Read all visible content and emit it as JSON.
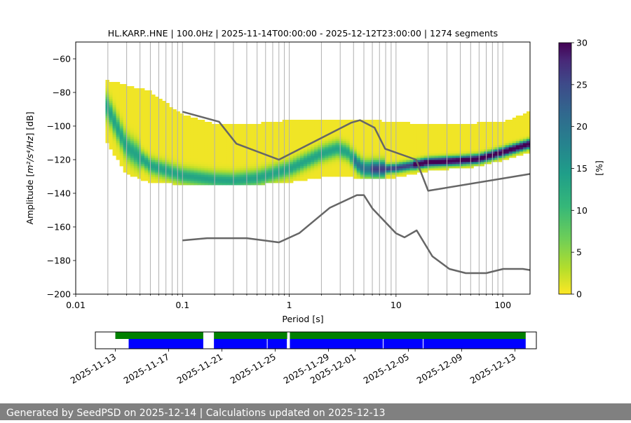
{
  "chart_data": {
    "type": "heatmap",
    "title": "HL.KARP..HNE | 100.0Hz | 2025-11-14T00:00:00 - 2025-12-12T23:00:00 | 1274 segments",
    "xlabel": "Period [s]",
    "ylabel_main": "Amplitude [",
    "ylabel_unit": "m²/s⁴/Hz",
    "ylabel_end": "] [dB]",
    "x_scale": "log",
    "xlim": [
      0.01,
      180
    ],
    "ylim": [
      -200,
      -50
    ],
    "x_ticks": [
      {
        "value": 0.01,
        "label": "0.01"
      },
      {
        "value": 0.1,
        "label": "0.1"
      },
      {
        "value": 1,
        "label": "1"
      },
      {
        "value": 10,
        "label": "10"
      },
      {
        "value": 100,
        "label": "100"
      }
    ],
    "y_ticks": [
      -60,
      -80,
      -100,
      -120,
      -140,
      -160,
      -180,
      -200
    ],
    "grid_periods": [
      0.02,
      0.03,
      0.04,
      0.05,
      0.06,
      0.07,
      0.08,
      0.09,
      0.1,
      0.2,
      0.3,
      0.4,
      0.5,
      0.6,
      0.7,
      0.8,
      0.9,
      1,
      2,
      3,
      4,
      5,
      6,
      7,
      8,
      9,
      10,
      20,
      30,
      40,
      50,
      60,
      70,
      80,
      90,
      100
    ],
    "colorbar": {
      "label": "[%]",
      "min": 0,
      "max": 30,
      "ticks": [
        0,
        5,
        10,
        15,
        20,
        25,
        30
      ],
      "colormap": "viridis_r"
    },
    "high_noise_model": {
      "period": [
        0.1,
        0.22,
        0.32,
        0.8,
        3.8,
        4.6,
        6.3,
        7.9,
        15.4,
        20,
        180
      ],
      "amplitude": [
        -91.5,
        -97.4,
        -110.5,
        -120,
        -98,
        -96.5,
        -101,
        -113.5,
        -120,
        -138.5,
        -128.5
      ]
    },
    "low_noise_model": {
      "period": [
        0.1,
        0.17,
        0.4,
        0.8,
        1.24,
        2.4,
        4.3,
        5,
        6,
        10,
        12,
        15.6,
        21.9,
        31.6,
        45,
        70,
        101,
        154,
        180
      ],
      "amplitude": [
        -168,
        -166.7,
        -166.7,
        -169.2,
        -163.7,
        -148.6,
        -141.1,
        -141.1,
        -149,
        -163.8,
        -166.2,
        -162.1,
        -177.5,
        -185,
        -187.5,
        -187.5,
        -185,
        -185,
        -185.7
      ]
    },
    "density": {
      "period_min": 0.019,
      "mode_curve": {
        "period": [
          0.019,
          0.03,
          0.05,
          0.1,
          0.2,
          0.3,
          0.5,
          1,
          2,
          2.8,
          3.5,
          4.5,
          5,
          6,
          8,
          10,
          15,
          20,
          40,
          60,
          100,
          180
        ],
        "amplitude": [
          -87,
          -113,
          -124,
          -130,
          -132.5,
          -133,
          -131.5,
          -126,
          -117,
          -114,
          -116,
          -124,
          -126,
          -126,
          -126,
          -125.5,
          -123.5,
          -122,
          -121,
          -120,
          -116,
          -111
        ]
      },
      "upper_bound": {
        "period": [
          0.019,
          0.03,
          0.05,
          0.1,
          0.2,
          0.5,
          1,
          2,
          5,
          10,
          15,
          20,
          50,
          100,
          180
        ],
        "amplitude": [
          -73,
          -76,
          -80,
          -94,
          -99,
          -99,
          -97,
          -97,
          -97,
          -98,
          -99,
          -99,
          -99,
          -98,
          -92
        ]
      },
      "lower_bound": {
        "period": [
          0.019,
          0.03,
          0.05,
          0.1,
          0.2,
          0.5,
          1,
          2,
          3,
          5,
          10,
          20,
          50,
          100,
          180
        ],
        "amplitude": [
          -108,
          -128,
          -133,
          -134,
          -134,
          -134,
          -133,
          -130,
          -129,
          -131,
          -130,
          -126,
          -124,
          -120,
          -115
        ]
      }
    },
    "availability": {
      "tick_labels": [
        "2025-11-13",
        "2025-11-17",
        "2025-11-21",
        "2025-11-25",
        "2025-11-29",
        "2025-12-01",
        "2025-12-05",
        "2025-12-09",
        "2025-12-13"
      ],
      "tick_days": [
        0,
        4,
        8,
        12,
        16,
        18,
        22,
        26,
        30
      ],
      "range_days": [
        -1.5,
        31.6
      ],
      "green_segments": [
        [
          0,
          6.6
        ],
        [
          7.4,
          12.9
        ],
        [
          13.1,
          30.8
        ]
      ],
      "blue_segments": [
        [
          1,
          6.6
        ],
        [
          7.4,
          12.9
        ],
        [
          13.1,
          30.8
        ]
      ],
      "gaps": [
        11.4,
        12.9,
        20.1,
        23.1
      ],
      "colors": {
        "green": "#008000",
        "blue": "#0000ff"
      }
    },
    "colors": {
      "noise_model": "#666666",
      "grid": "#b0b0b0"
    }
  },
  "footer": {
    "text": "Generated by SeedPSD on 2025-12-14 | Calculations updated on 2025-12-13"
  }
}
